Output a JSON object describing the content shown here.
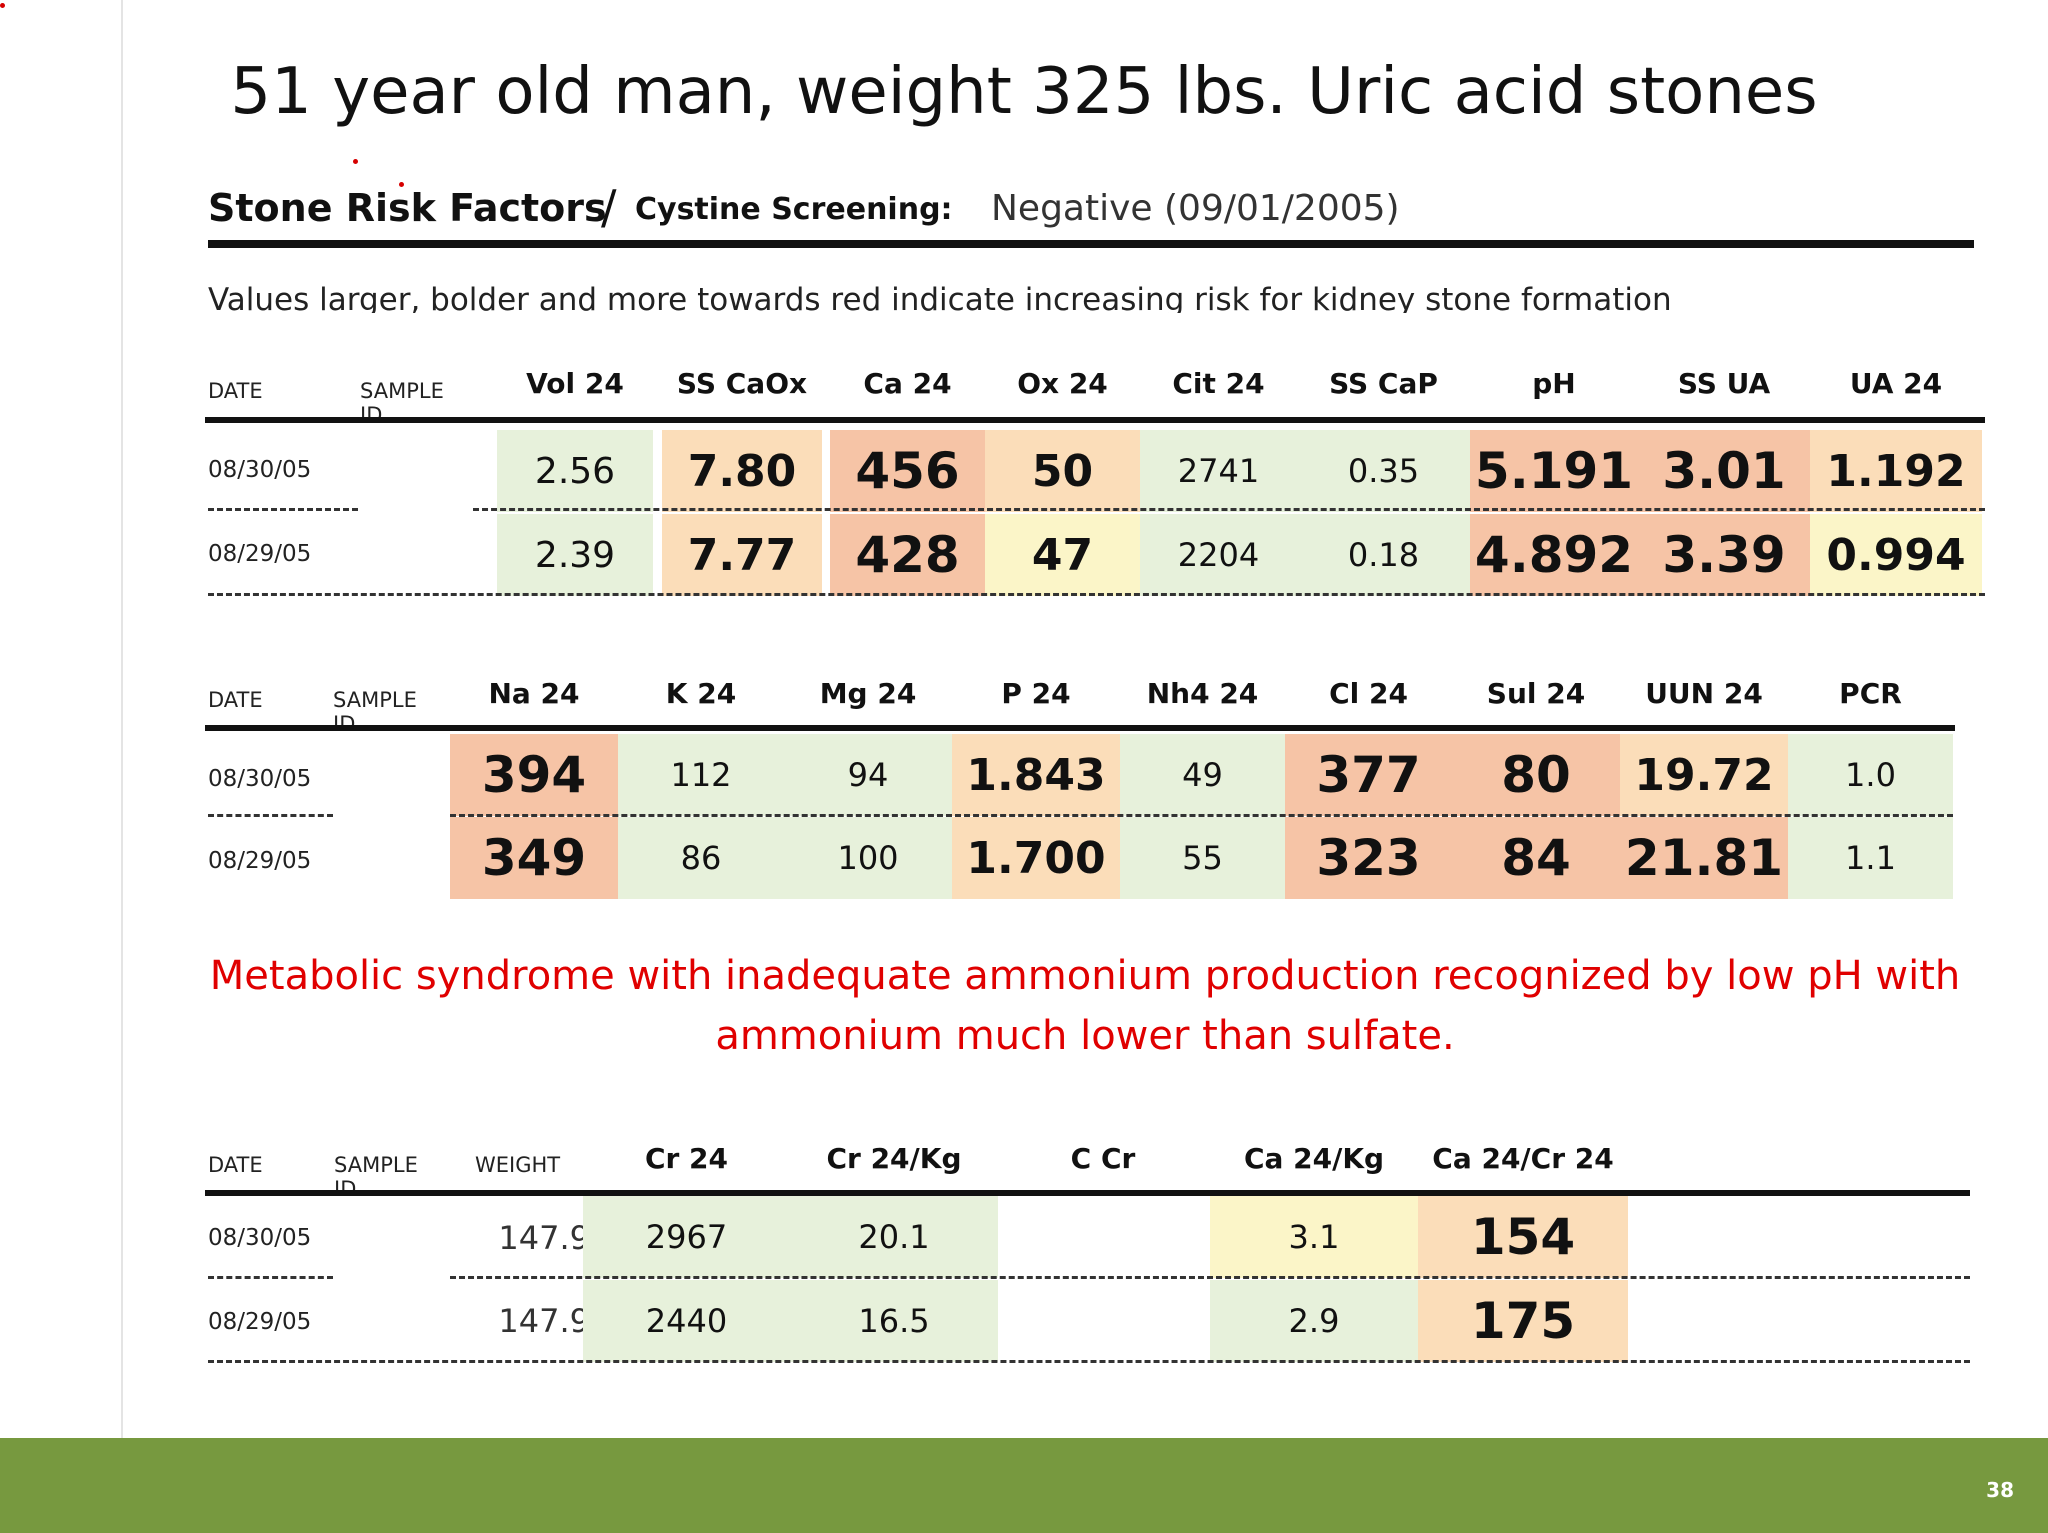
{
  "slide": {
    "title": "51 year old man, weight 325 lbs.  Uric acid stones",
    "page_number": "38"
  },
  "report": {
    "heading": "Stone Risk Factors",
    "slash": "/",
    "cystine_label": "Cystine Screening:",
    "cystine_value": "Negative (09/01/2005)",
    "note": "Values larger, bolder and more towards red indicate increasing risk for kidney stone formation"
  },
  "colors": {
    "green": "#e7f1db",
    "yellow": "#fbf5c8",
    "orange": "#fbddb9",
    "red": "#f6c4a6",
    "message": "#e00000",
    "footer": "#77993f"
  },
  "table1": {
    "date_header": "DATE",
    "sample_header": "SAMPLE ID",
    "columns": [
      "Vol 24",
      "SS CaOx",
      "Ca 24",
      "Ox 24",
      "Cit 24",
      "SS CaP",
      "pH",
      "SS UA",
      "UA 24"
    ],
    "rows": [
      {
        "date": "08/30/05",
        "values": [
          "2.56",
          "7.80",
          "456",
          "50",
          "2741",
          "0.35",
          "5.191",
          "3.01",
          "1.192"
        ]
      },
      {
        "date": "08/29/05",
        "values": [
          "2.39",
          "7.77",
          "428",
          "47",
          "2204",
          "0.18",
          "4.892",
          "3.39",
          "0.994"
        ]
      }
    ]
  },
  "table2": {
    "date_header": "DATE",
    "sample_header": "SAMPLE ID",
    "columns": [
      "Na 24",
      "K 24",
      "Mg 24",
      "P 24",
      "Nh4 24",
      "Cl 24",
      "Sul 24",
      "UUN 24",
      "PCR"
    ],
    "rows": [
      {
        "date": "08/30/05",
        "values": [
          "394",
          "112",
          "94",
          "1.843",
          "49",
          "377",
          "80",
          "19.72",
          "1.0"
        ]
      },
      {
        "date": "08/29/05",
        "values": [
          "349",
          "86",
          "100",
          "1.700",
          "55",
          "323",
          "84",
          "21.81",
          "1.1"
        ]
      }
    ]
  },
  "message": {
    "line1": "Metabolic syndrome with inadequate ammonium production recognized by low pH with",
    "line2": "ammonium much lower than sulfate."
  },
  "table3": {
    "date_header": "DATE",
    "sample_header": "SAMPLE ID",
    "weight_header": "WEIGHT",
    "columns": [
      "Cr 24",
      "Cr 24/Kg",
      "C Cr",
      "Ca 24/Kg",
      "Ca 24/Cr 24"
    ],
    "rows": [
      {
        "date": "08/30/05",
        "weight": "147.9",
        "values": [
          "2967",
          "20.1",
          "",
          "3.1",
          "154"
        ]
      },
      {
        "date": "08/29/05",
        "weight": "147.9",
        "values": [
          "2440",
          "16.5",
          "",
          "2.9",
          "175"
        ]
      }
    ]
  }
}
